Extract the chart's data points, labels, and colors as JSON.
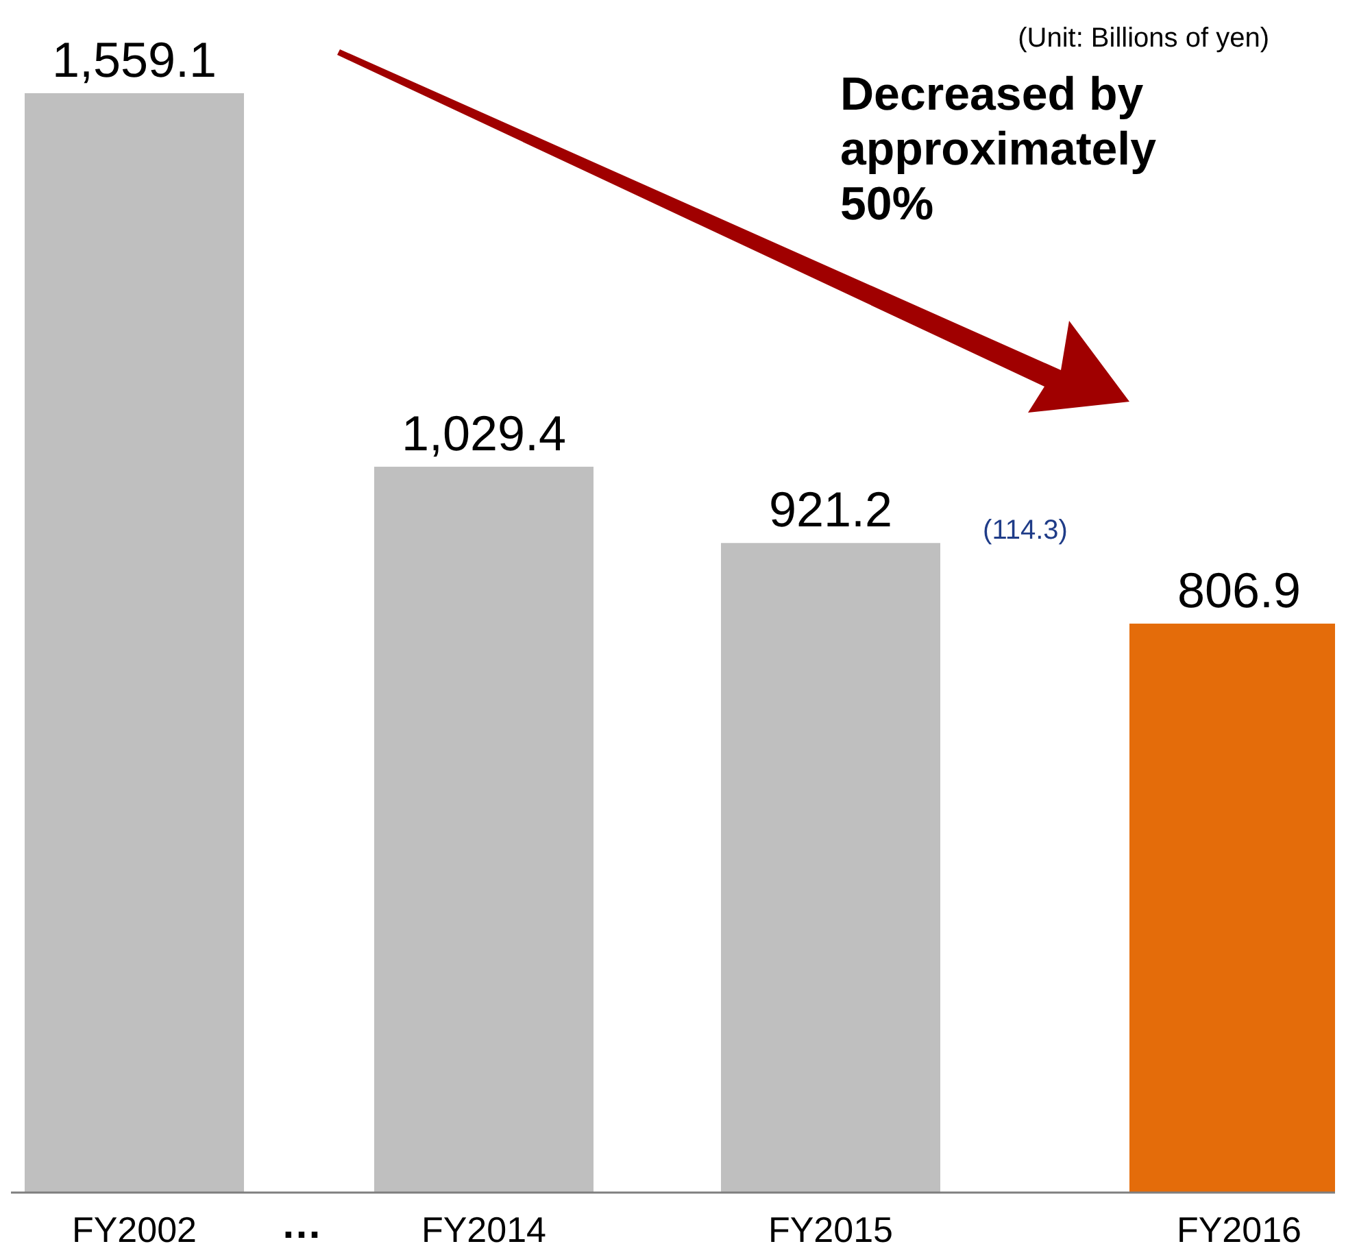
{
  "chart_data": {
    "type": "bar",
    "categories": [
      "FY2002",
      "FY2014",
      "FY2015",
      "FY2016"
    ],
    "values": [
      1559.1,
      1029.4,
      921.2,
      806.9
    ],
    "colors": [
      "#bfbfbf",
      "#bfbfbf",
      "#bfbfbf",
      "#e46c0a"
    ],
    "value_labels": [
      "1,559.1",
      "1,029.4",
      "921.2",
      "806.9"
    ],
    "annotations": [
      "(Unit: Billions of yen)",
      "Decreased by approximately 50%",
      "(114.3)",
      "…"
    ]
  }
}
